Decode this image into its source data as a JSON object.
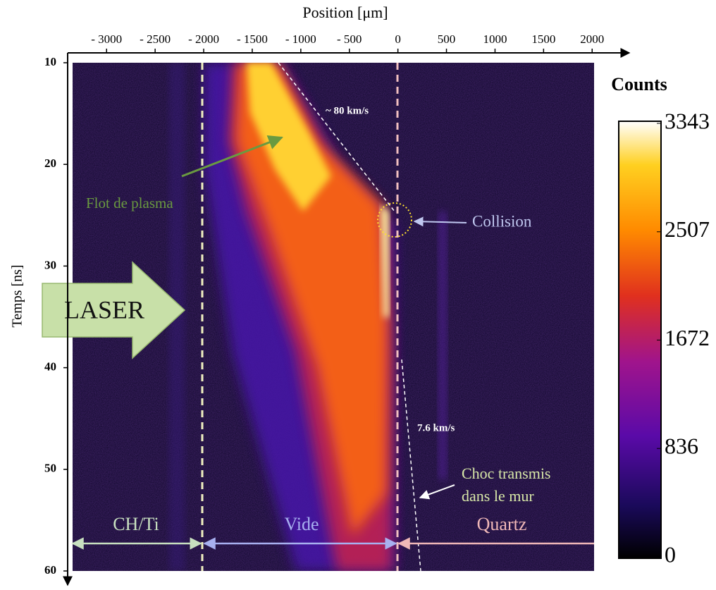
{
  "chart_data": {
    "type": "heatmap",
    "xlabel": "Position [μm]",
    "ylabel": "Temps [ns]",
    "xlim": [
      -3350,
      2020
    ],
    "xticks": [
      {
        "value": -3000,
        "label": "- 3000"
      },
      {
        "value": -2500,
        "label": "- 2500"
      },
      {
        "value": -2000,
        "label": "- 2000"
      },
      {
        "value": -1500,
        "label": "- 1500"
      },
      {
        "value": -1000,
        "label": "- 1000"
      },
      {
        "value": -500,
        "label": "- 500"
      },
      0,
      500,
      1000,
      1500,
      2000
    ],
    "ylim": [
      10,
      60
    ],
    "yticks": [
      10,
      20,
      30,
      40,
      50,
      60
    ],
    "colorbar": {
      "label": "Counts",
      "lim": [
        0,
        3343
      ],
      "ticks": [
        0,
        836,
        1672,
        2507,
        3343
      ]
    },
    "annotations": {
      "velocity_top": "~ 80 km/s",
      "velocity_bottom": "7.6 km/s",
      "plasma": "Flot de plasma",
      "collision": "Collision",
      "laser": "LASER",
      "shock": [
        "Choc transmis",
        "dans le mur"
      ],
      "regions": [
        "CH/Ti",
        "Vide",
        "Quartz"
      ]
    }
  }
}
